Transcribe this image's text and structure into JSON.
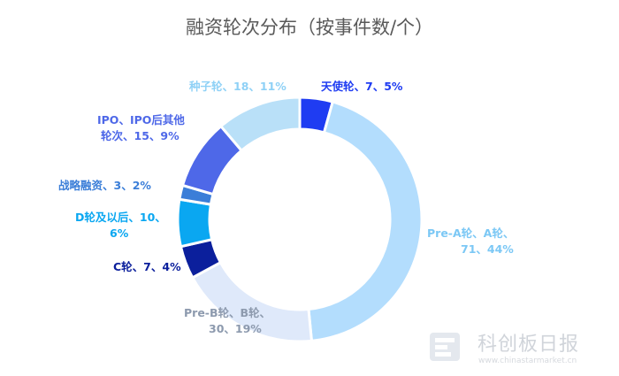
{
  "chart_data": {
    "type": "pie",
    "title": "融资轮次分布（按事件数/个）",
    "slices": [
      {
        "name": "天使轮",
        "value": 7,
        "pct": "5%",
        "color": "#1f3cf2",
        "text_color": "#1f3cf2",
        "label_lines": [
          "天使轮、7、5%"
        ]
      },
      {
        "name": "Pre-A轮、A轮",
        "value": 71,
        "pct": "44%",
        "color": "#b3ddfd",
        "text_color": "#7cc8f5",
        "label_lines": [
          "Pre-A轮、A轮、",
          "71、44%"
        ]
      },
      {
        "name": "Pre-B轮、B轮",
        "value": 30,
        "pct": "19%",
        "color": "#dfe9fa",
        "text_color": "#8d9aae",
        "label_lines": [
          "Pre-B轮、B轮、",
          "30、19%"
        ]
      },
      {
        "name": "C轮",
        "value": 7,
        "pct": "4%",
        "color": "#0b1f9c",
        "text_color": "#0b1f9c",
        "label_lines": [
          "C轮、7、4%"
        ]
      },
      {
        "name": "D轮及以后",
        "value": 10,
        "pct": "6%",
        "color": "#0aa7f1",
        "text_color": "#0aa7f1",
        "label_lines": [
          "D轮及以后、10、",
          "6%"
        ]
      },
      {
        "name": "战略融资",
        "value": 3,
        "pct": "2%",
        "color": "#3b7ed8",
        "text_color": "#3b7ed8",
        "label_lines": [
          "战略融资、3、2%"
        ]
      },
      {
        "name": "IPO、IPO后其他轮次",
        "value": 15,
        "pct": "9%",
        "color": "#4e68e8",
        "text_color": "#4e68e8",
        "label_lines": [
          "IPO、IPO后其他",
          "轮次、15、9%"
        ]
      },
      {
        "name": "种子轮",
        "value": 18,
        "pct": "11%",
        "color": "#b9e0f8",
        "text_color": "#8fd1f6",
        "label_lines": [
          "种子轮、18、11%"
        ]
      }
    ]
  },
  "watermark": {
    "name": "科创板日报",
    "url": "www.chinastarmarket.cn",
    "icon": "report-logo-icon"
  }
}
